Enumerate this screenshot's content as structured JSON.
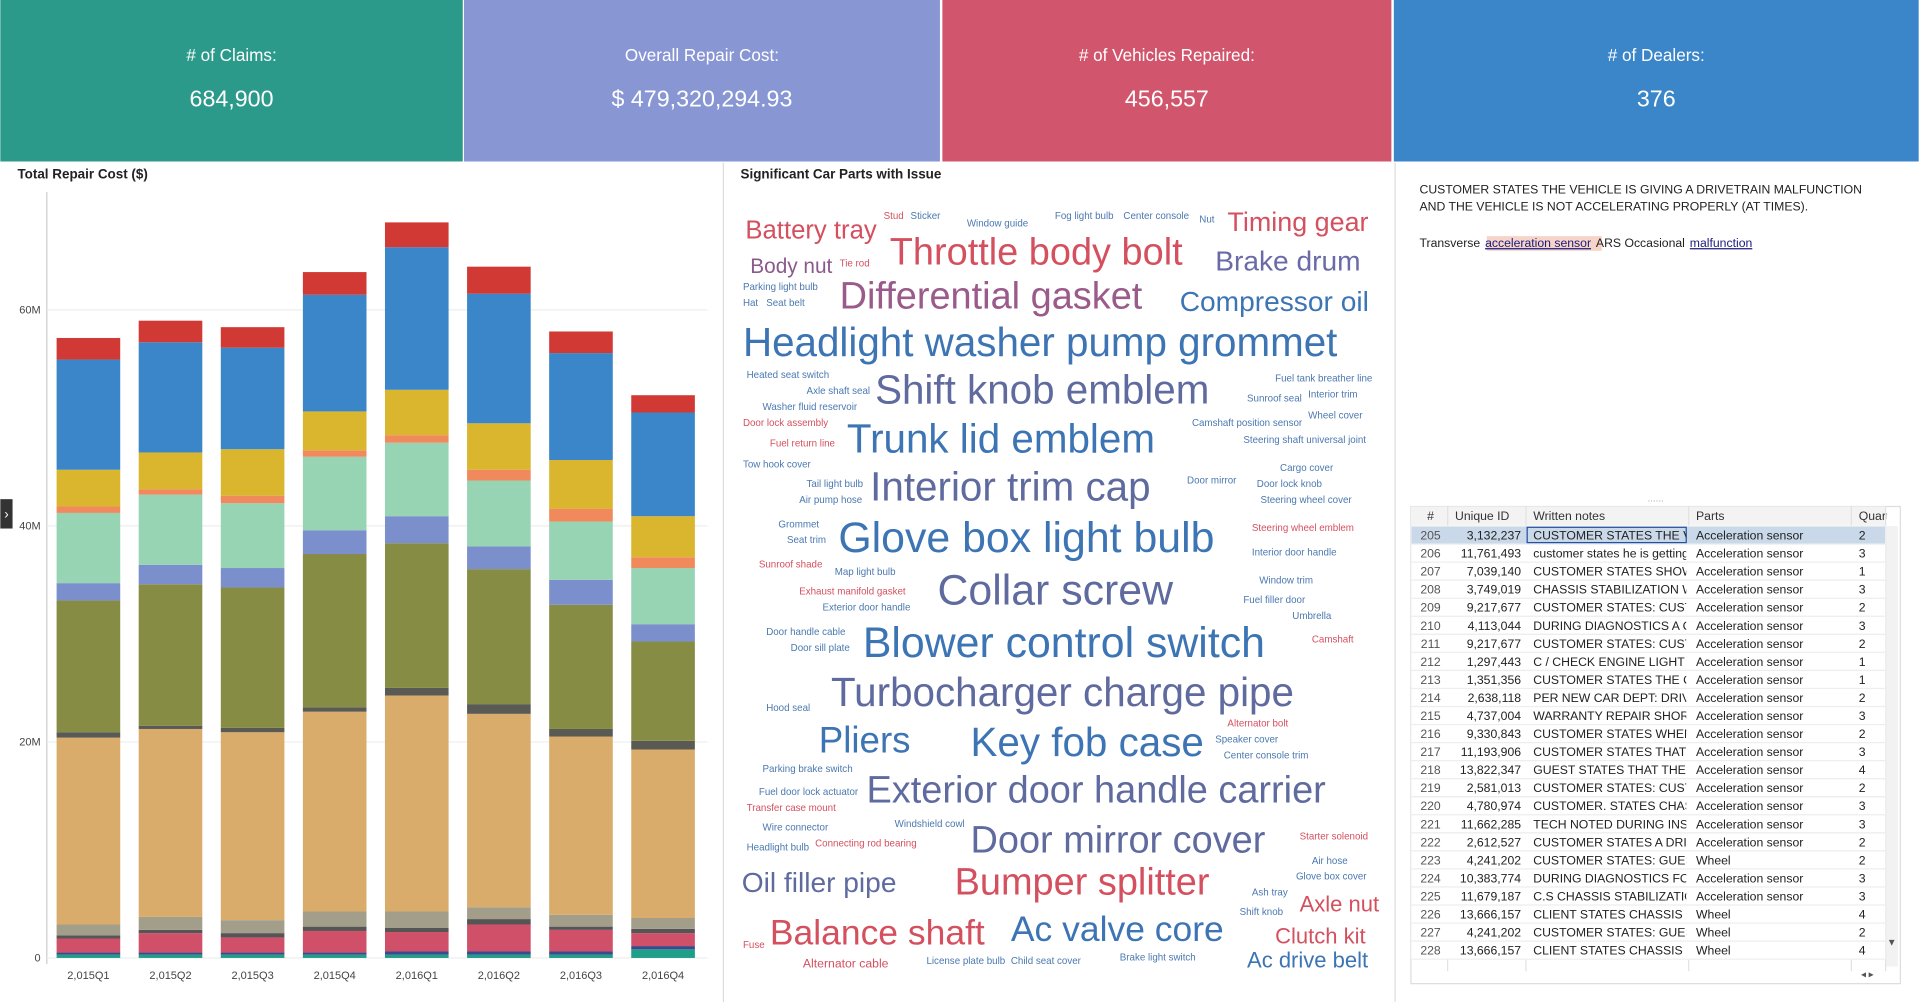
{
  "kpis": [
    {
      "label": "# of Claims:",
      "value": "684,900",
      "color": "#2b9a8a"
    },
    {
      "label": "Overall Repair Cost:",
      "value": "$ 479,320,294.93",
      "color": "#8896d4"
    },
    {
      "label": "# of Vehicles Repaired:",
      "value": "456,557",
      "color": "#d1566d"
    },
    {
      "label": "# of Dealers:",
      "value": "376",
      "color": "#3a86c8"
    }
  ],
  "chart_data": {
    "type": "stacked_bar",
    "title": "Total Repair Cost ($)",
    "categories": [
      "2,015Q1",
      "2,015Q2",
      "2,015Q3",
      "2,015Q4",
      "2,016Q1",
      "2,016Q2",
      "2,016Q3",
      "2,016Q4"
    ],
    "ylim": [
      0,
      70000000
    ],
    "yticks": [
      {
        "value": 0,
        "label": "0"
      },
      {
        "value": 20000000,
        "label": "20M"
      },
      {
        "value": 40000000,
        "label": "40M"
      },
      {
        "value": 60000000,
        "label": "60M"
      }
    ],
    "grid": true,
    "series": [
      {
        "color": "#1f9e89",
        "values": [
          300000,
          300000,
          300000,
          300000,
          300000,
          300000,
          300000,
          800000
        ]
      },
      {
        "color": "#3a4a8a",
        "values": [
          200000,
          200000,
          200000,
          200000,
          300000,
          300000,
          300000,
          300000
        ]
      },
      {
        "color": "#d0506a",
        "values": [
          1300000,
          1800000,
          1400000,
          2000000,
          1800000,
          2500000,
          2000000,
          1200000
        ]
      },
      {
        "color": "#555555",
        "values": [
          300000,
          300000,
          400000,
          400000,
          400000,
          500000,
          300000,
          400000
        ]
      },
      {
        "color": "#a39e8a",
        "values": [
          1000000,
          1200000,
          1200000,
          1400000,
          1500000,
          1100000,
          1100000,
          1000000
        ]
      },
      {
        "color": "#d9ac6b",
        "values": [
          17300000,
          17400000,
          17400000,
          18500000,
          20000000,
          17900000,
          16500000,
          15600000
        ]
      },
      {
        "color": "#5a5a55",
        "values": [
          500000,
          300000,
          400000,
          400000,
          700000,
          900000,
          700000,
          800000
        ]
      },
      {
        "color": "#878c45",
        "values": [
          12200000,
          13100000,
          13000000,
          14200000,
          13400000,
          12500000,
          11500000,
          9200000
        ]
      },
      {
        "color": "#7b8fcc",
        "values": [
          1600000,
          1800000,
          1800000,
          2200000,
          2500000,
          2100000,
          2300000,
          1600000
        ]
      },
      {
        "color": "#96d4b4",
        "values": [
          6500000,
          6500000,
          6000000,
          6800000,
          6800000,
          6100000,
          5400000,
          5200000
        ]
      },
      {
        "color": "#f08a5d",
        "values": [
          600000,
          500000,
          700000,
          600000,
          700000,
          1000000,
          1200000,
          1000000
        ]
      },
      {
        "color": "#dab52e",
        "values": [
          3400000,
          3400000,
          4300000,
          3600000,
          4200000,
          4300000,
          4500000,
          3800000
        ]
      },
      {
        "color": "#3a86c8",
        "values": [
          10200000,
          10200000,
          9400000,
          10800000,
          13200000,
          12000000,
          9900000,
          9600000
        ]
      },
      {
        "color": "#d13a34",
        "values": [
          2000000,
          2000000,
          1900000,
          2100000,
          2300000,
          2500000,
          2000000,
          1600000
        ]
      }
    ]
  },
  "wordcloud": {
    "title": "Significant Car Parts with Issue",
    "words": [
      {
        "text": "Battery tray",
        "weight": 21,
        "color": "#d4505f"
      },
      {
        "text": "Stud",
        "weight": 8,
        "color": "#d4505f"
      },
      {
        "text": "Sticker",
        "weight": 8,
        "color": "#4a78b0"
      },
      {
        "text": "Window guide",
        "weight": 8,
        "color": "#4a78b0"
      },
      {
        "text": "Fog light bulb",
        "weight": 8,
        "color": "#4a78b0"
      },
      {
        "text": "Center console",
        "weight": 8,
        "color": "#4a78b0"
      },
      {
        "text": "Nut",
        "weight": 8,
        "color": "#4a78b0"
      },
      {
        "text": "Timing gear",
        "weight": 22,
        "color": "#d4505f"
      },
      {
        "text": "Body nut",
        "weight": 17,
        "color": "#8a5a8c"
      },
      {
        "text": "Tie rod",
        "weight": 8,
        "color": "#d4505f"
      },
      {
        "text": "Throttle body bolt",
        "weight": 31,
        "color": "#d4505f"
      },
      {
        "text": "Brake drum",
        "weight": 23,
        "color": "#6a6aa8"
      },
      {
        "text": "Parking light bulb",
        "weight": 8,
        "color": "#4a78b0"
      },
      {
        "text": "Hat",
        "weight": 8,
        "color": "#4a78b0"
      },
      {
        "text": "Seat belt",
        "weight": 8,
        "color": "#4a78b0"
      },
      {
        "text": "Differential gasket",
        "weight": 31,
        "color": "#9a5a8a"
      },
      {
        "text": "Compressor oil",
        "weight": 23,
        "color": "#3c74b4"
      },
      {
        "text": "Headlight washer pump grommet",
        "weight": 33,
        "color": "#3c74b4"
      },
      {
        "text": "Heated seat switch",
        "weight": 8,
        "color": "#4a78b0"
      },
      {
        "text": "Axle shaft seal",
        "weight": 8,
        "color": "#4a78b0"
      },
      {
        "text": "Washer fluid reservoir",
        "weight": 8,
        "color": "#4a78b0"
      },
      {
        "text": "Door lock assembly",
        "weight": 8,
        "color": "#d4505f"
      },
      {
        "text": "Shift knob emblem",
        "weight": 33,
        "color": "#5f6a9e"
      },
      {
        "text": "Fuel tank breather line",
        "weight": 8,
        "color": "#4a78b0"
      },
      {
        "text": "Sunroof seal",
        "weight": 8,
        "color": "#4a78b0"
      },
      {
        "text": "Interior trim",
        "weight": 8,
        "color": "#4a78b0"
      },
      {
        "text": "Wheel cover",
        "weight": 8,
        "color": "#4a78b0"
      },
      {
        "text": "Camshaft position sensor",
        "weight": 8,
        "color": "#4a78b0"
      },
      {
        "text": "Fuel return line",
        "weight": 8,
        "color": "#d4505f"
      },
      {
        "text": "Trunk lid emblem",
        "weight": 33,
        "color": "#3c74b4"
      },
      {
        "text": "Steering shaft universal joint",
        "weight": 8,
        "color": "#4a78b0"
      },
      {
        "text": "Tow hook cover",
        "weight": 8,
        "color": "#4a78b0"
      },
      {
        "text": "Cargo cover",
        "weight": 8,
        "color": "#4a78b0"
      },
      {
        "text": "Tail light bulb",
        "weight": 8,
        "color": "#4a78b0"
      },
      {
        "text": "Interior trim cap",
        "weight": 33,
        "color": "#5f6a9e"
      },
      {
        "text": "Door mirror",
        "weight": 8,
        "color": "#4a78b0"
      },
      {
        "text": "Door lock knob",
        "weight": 8,
        "color": "#4a78b0"
      },
      {
        "text": "Air pump hose",
        "weight": 8,
        "color": "#4a78b0"
      },
      {
        "text": "Steering wheel cover",
        "weight": 8,
        "color": "#4a78b0"
      },
      {
        "text": "Grommet",
        "weight": 8,
        "color": "#4a78b0"
      },
      {
        "text": "Seat trim",
        "weight": 8,
        "color": "#4a78b0"
      },
      {
        "text": "Glove box light bulb",
        "weight": 35,
        "color": "#3c74b4"
      },
      {
        "text": "Steering wheel emblem",
        "weight": 8,
        "color": "#d4505f"
      },
      {
        "text": "Interior door handle",
        "weight": 8,
        "color": "#4a78b0"
      },
      {
        "text": "Sunroof shade",
        "weight": 8,
        "color": "#d4505f"
      },
      {
        "text": "Map light bulb",
        "weight": 8,
        "color": "#4a78b0"
      },
      {
        "text": "Exhaust manifold gasket",
        "weight": 8,
        "color": "#d4505f"
      },
      {
        "text": "Collar screw",
        "weight": 35,
        "color": "#5f6a9e"
      },
      {
        "text": "Window trim",
        "weight": 8,
        "color": "#4a78b0"
      },
      {
        "text": "Exterior door handle",
        "weight": 8,
        "color": "#4a78b0"
      },
      {
        "text": "Fuel filler door",
        "weight": 8,
        "color": "#4a78b0"
      },
      {
        "text": "Umbrella",
        "weight": 8,
        "color": "#4a78b0"
      },
      {
        "text": "Door handle cable",
        "weight": 8,
        "color": "#4a78b0"
      },
      {
        "text": "Door sill plate",
        "weight": 8,
        "color": "#4a78b0"
      },
      {
        "text": "Blower control switch",
        "weight": 35,
        "color": "#3c74b4"
      },
      {
        "text": "Camshaft",
        "weight": 8,
        "color": "#d4505f"
      },
      {
        "text": "Turbocharger charge pipe",
        "weight": 33,
        "color": "#5f6a9e"
      },
      {
        "text": "Hood seal",
        "weight": 8,
        "color": "#4a78b0"
      },
      {
        "text": "Alternator bolt",
        "weight": 8,
        "color": "#d4505f"
      },
      {
        "text": "Pliers",
        "weight": 30,
        "color": "#3c74b4"
      },
      {
        "text": "Key fob case",
        "weight": 33,
        "color": "#3c74b4"
      },
      {
        "text": "Speaker cover",
        "weight": 8,
        "color": "#4a78b0"
      },
      {
        "text": "Center console trim",
        "weight": 8,
        "color": "#4a78b0"
      },
      {
        "text": "Parking brake switch",
        "weight": 8,
        "color": "#4a78b0"
      },
      {
        "text": "Exterior door handle carrier",
        "weight": 31,
        "color": "#5f6a9e"
      },
      {
        "text": "Fuel door lock actuator",
        "weight": 8,
        "color": "#4a78b0"
      },
      {
        "text": "Transfer case mount",
        "weight": 8,
        "color": "#d4505f"
      },
      {
        "text": "Windshield cowl",
        "weight": 8,
        "color": "#4a78b0"
      },
      {
        "text": "Wire connector",
        "weight": 8,
        "color": "#4a78b0"
      },
      {
        "text": "Door mirror cover",
        "weight": 31,
        "color": "#5f6a9e"
      },
      {
        "text": "Starter solenoid",
        "weight": 8,
        "color": "#d4505f"
      },
      {
        "text": "Headlight bulb",
        "weight": 8,
        "color": "#4a78b0"
      },
      {
        "text": "Connecting rod bearing",
        "weight": 8,
        "color": "#d4505f"
      },
      {
        "text": "Oil filler pipe",
        "weight": 23,
        "color": "#5f6a9e"
      },
      {
        "text": "Bumper splitter",
        "weight": 31,
        "color": "#d4505f"
      },
      {
        "text": "Air hose",
        "weight": 8,
        "color": "#4a78b0"
      },
      {
        "text": "Glove box cover",
        "weight": 8,
        "color": "#4a78b0"
      },
      {
        "text": "Ash tray",
        "weight": 8,
        "color": "#4a78b0"
      },
      {
        "text": "Axle nut",
        "weight": 18,
        "color": "#d4505f"
      },
      {
        "text": "Shift knob",
        "weight": 8,
        "color": "#4a78b0"
      },
      {
        "text": "Balance shaft",
        "weight": 29,
        "color": "#d4505f"
      },
      {
        "text": "Ac valve core",
        "weight": 29,
        "color": "#3c74b4"
      },
      {
        "text": "Clutch kit",
        "weight": 18,
        "color": "#d4505f"
      },
      {
        "text": "Fuse",
        "weight": 8,
        "color": "#d4505f"
      },
      {
        "text": "Ac drive belt",
        "weight": 18,
        "color": "#3c74b4"
      },
      {
        "text": "Alternator cable",
        "weight": 10,
        "color": "#d4505f"
      },
      {
        "text": "License plate bulb",
        "weight": 8,
        "color": "#4a78b0"
      },
      {
        "text": "Child seat cover",
        "weight": 8,
        "color": "#4a78b0"
      },
      {
        "text": "Brake light switch",
        "weight": 8,
        "color": "#4a78b0"
      }
    ]
  },
  "note": {
    "lines": [
      "CUSTOMER STATES THE VEHICLE IS GIVING A DRIVETRAIN MALFUNCTION",
      "AND THE VEHICLE IS NOT ACCELERATING PROPERLY (AT TIMES)."
    ],
    "tagged": [
      "Transverse",
      "acceleration sensor",
      "ARS Occasional",
      "malfunction"
    ]
  },
  "table": {
    "columns": [
      "#",
      "Unique ID",
      "Written notes",
      "Parts",
      "Quart"
    ],
    "rows": [
      [
        205,
        "3,132,237",
        "CUSTOMER STATES THE VE",
        "Acceleration sensor",
        2
      ],
      [
        206,
        "11,761,493",
        "customer states he is getting",
        "Acceleration sensor",
        3
      ],
      [
        207,
        "7,039,140",
        "CUSTOMER STATES SHOWIN",
        "Acceleration sensor",
        1
      ],
      [
        208,
        "3,749,019",
        "CHASSIS STABILIZATION W",
        "Acceleration sensor",
        3
      ],
      [
        209,
        "9,217,677",
        "CUSTOMER STATES: CUSTO",
        "Acceleration sensor",
        2
      ],
      [
        210,
        "4,113,044",
        "DURING DIAGNOSTICS A CH",
        "Acceleration sensor",
        3
      ],
      [
        211,
        "9,217,677",
        "CUSTOMER STATES: CUSTO",
        "Acceleration sensor",
        2
      ],
      [
        212,
        "1,297,443",
        "C / CHECK ENGINE LIGHT C",
        "Acceleration sensor",
        1
      ],
      [
        213,
        "1,351,356",
        "CUSTOMER STATES THE CH",
        "Acceleration sensor",
        1
      ],
      [
        214,
        "2,638,118",
        "PER NEW CAR DEPT: DRIVE",
        "Acceleration sensor",
        2
      ],
      [
        215,
        "4,737,004",
        "WARRANTY REPAIR SHORTE",
        "Acceleration sensor",
        3
      ],
      [
        216,
        "9,330,843",
        "CUSTOMER STATES WHEN D",
        "Acceleration sensor",
        2
      ],
      [
        217,
        "11,193,906",
        "CUSTOMER STATES THAT TH",
        "Acceleration sensor",
        3
      ],
      [
        218,
        "13,822,347",
        "GUEST STATES THAT THE \"C",
        "Acceleration sensor",
        4
      ],
      [
        219,
        "2,581,013",
        "CUSTOMER STATES: CUSTO",
        "Acceleration sensor",
        2
      ],
      [
        220,
        "4,780,974",
        "CUSTOMER. STATES CHASSI",
        "Acceleration sensor",
        3
      ],
      [
        221,
        "11,662,285",
        "TECH NOTED DURING INSPE",
        "Acceleration sensor",
        3
      ],
      [
        222,
        "2,612,527",
        "CUSTOMER STATES A DRIVE",
        "Acceleration sensor",
        2
      ],
      [
        223,
        "4,241,202",
        "CUSTOMER STATES: GUEST",
        "Wheel",
        2
      ],
      [
        224,
        "10,383,774",
        "DURING DIAGNOSTICS FOR",
        "Acceleration sensor",
        3
      ],
      [
        225,
        "11,679,187",
        "C.S CHASSIS STABILIZATIO",
        "Acceleration sensor",
        3
      ],
      [
        226,
        "13,666,157",
        "CLIENT STATES CHASSIS ST",
        "Wheel",
        4
      ],
      [
        227,
        "4,241,202",
        "CUSTOMER STATES: GUEST",
        "Wheel",
        2
      ],
      [
        228,
        "13,666,157",
        "CLIENT STATES CHASSIS ST",
        "Wheel",
        4
      ]
    ]
  }
}
